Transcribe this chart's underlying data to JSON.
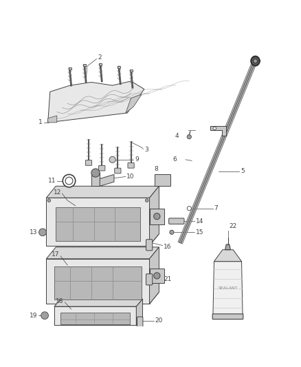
{
  "background_color": "#ffffff",
  "fig_width": 4.38,
  "fig_height": 5.33,
  "dpi": 100,
  "line_color": "#404040",
  "label_color": "#333333",
  "font_size": 6.5,
  "leader_lw": 0.5,
  "part_lw": 0.7,
  "fill_light": "#e8e8e8",
  "fill_mid": "#c8c8c8",
  "fill_dark": "#a0a0a0"
}
